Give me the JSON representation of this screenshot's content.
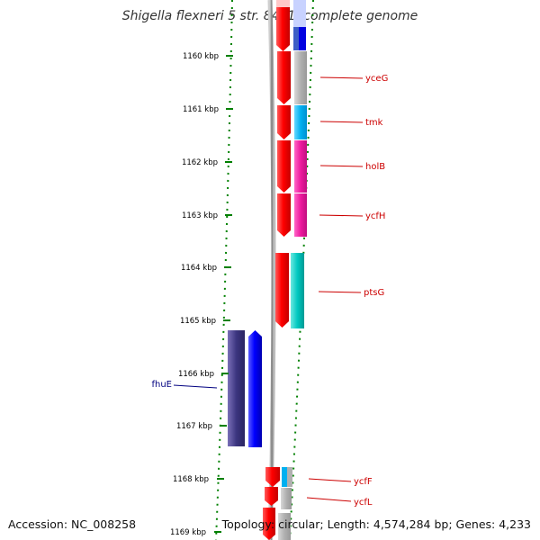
{
  "title": "Shigella flexneri 5 str. 8401, complete genome",
  "accession": "Accession: NC_008258",
  "topology": "Topology: circular; Length: 4,574,284 bp; Genes: 4,233",
  "ticks": [
    {
      "label": "1160 kbp"
    },
    {
      "label": "1161 kbp"
    },
    {
      "label": "1162 kbp"
    },
    {
      "label": "1163 kbp"
    },
    {
      "label": "1164 kbp"
    },
    {
      "label": "1165 kbp"
    },
    {
      "label": "1166 kbp"
    },
    {
      "label": "1167 kbp"
    },
    {
      "label": "1168 kbp"
    },
    {
      "label": "1169 kbp"
    }
  ],
  "genes": [
    {
      "name": "yceG",
      "strand": "forward"
    },
    {
      "name": "tmk",
      "strand": "forward"
    },
    {
      "name": "holB",
      "strand": "forward"
    },
    {
      "name": "ycfH",
      "strand": "forward"
    },
    {
      "name": "ptsG",
      "strand": "forward"
    },
    {
      "name": "fhuE",
      "strand": "reverse"
    },
    {
      "name": "ycfF",
      "strand": "forward"
    },
    {
      "name": "ycfL",
      "strand": "forward"
    }
  ],
  "colors": {
    "forward_cds": "#ff0000",
    "reverse_cds": "#0000ff",
    "tick_ring": "#008000",
    "backbone": "#888888",
    "forward_label": "#cc0000",
    "reverse_label": "#000080"
  }
}
